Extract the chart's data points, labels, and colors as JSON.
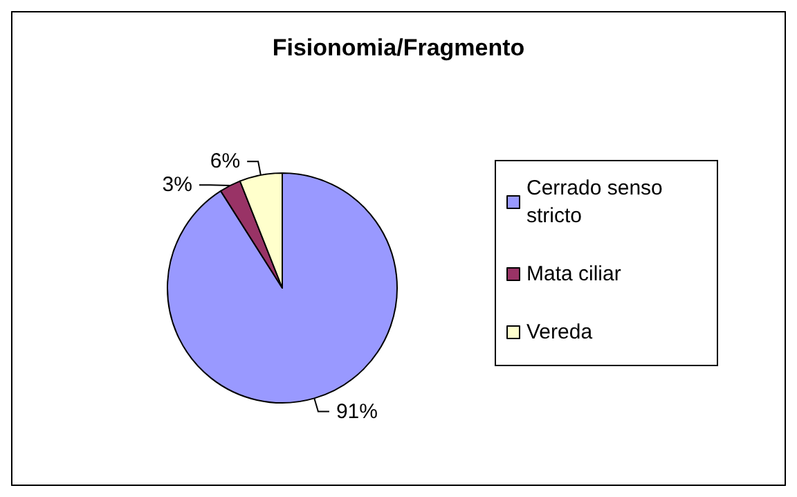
{
  "chart_data": {
    "type": "pie",
    "title": "Fisionomia/Fragmento",
    "categories": [
      "Cerrado senso stricto",
      "Mata ciliar",
      "Vereda"
    ],
    "values": [
      91,
      3,
      6
    ],
    "value_labels": [
      "91%",
      "3%",
      "6%"
    ],
    "colors": [
      "#9999ff",
      "#993366",
      "#ffffcc"
    ],
    "legend": "right"
  }
}
